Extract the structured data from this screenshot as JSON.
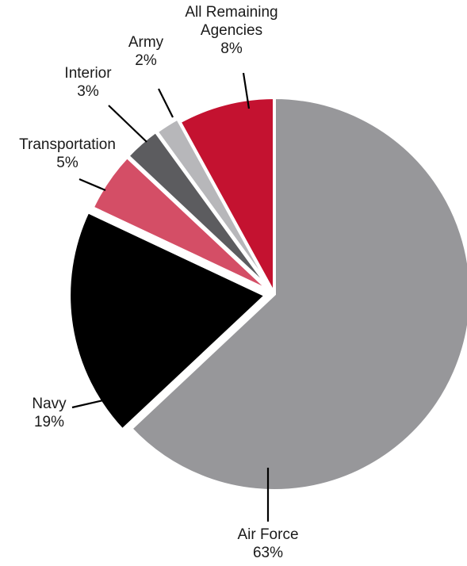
{
  "chart_data": {
    "type": "pie",
    "title": "",
    "start_angle_deg": 0,
    "direction": "clockwise",
    "slices": [
      {
        "key": "air-force",
        "label": "Air Force",
        "label_lines": [
          "Air Force"
        ],
        "value": 63,
        "value_label": "63%",
        "color": "#97979a"
      },
      {
        "key": "navy",
        "label": "Navy",
        "label_lines": [
          "Navy"
        ],
        "value": 19,
        "value_label": "19%",
        "color": "#000000"
      },
      {
        "key": "transportation",
        "label": "Transportation",
        "label_lines": [
          "Transportation"
        ],
        "value": 5,
        "value_label": "5%",
        "color": "#d44e66"
      },
      {
        "key": "interior",
        "label": "Interior",
        "label_lines": [
          "Interior"
        ],
        "value": 3,
        "value_label": "3%",
        "color": "#5c5c5f"
      },
      {
        "key": "army",
        "label": "Army",
        "label_lines": [
          "Army"
        ],
        "value": 2,
        "value_label": "2%",
        "color": "#b7b7ba"
      },
      {
        "key": "all-remaining",
        "label": "All Remaining Agencies",
        "label_lines": [
          "All Remaining",
          "Agencies"
        ],
        "value": 8,
        "value_label": "8%",
        "color": "#c41230"
      }
    ]
  }
}
